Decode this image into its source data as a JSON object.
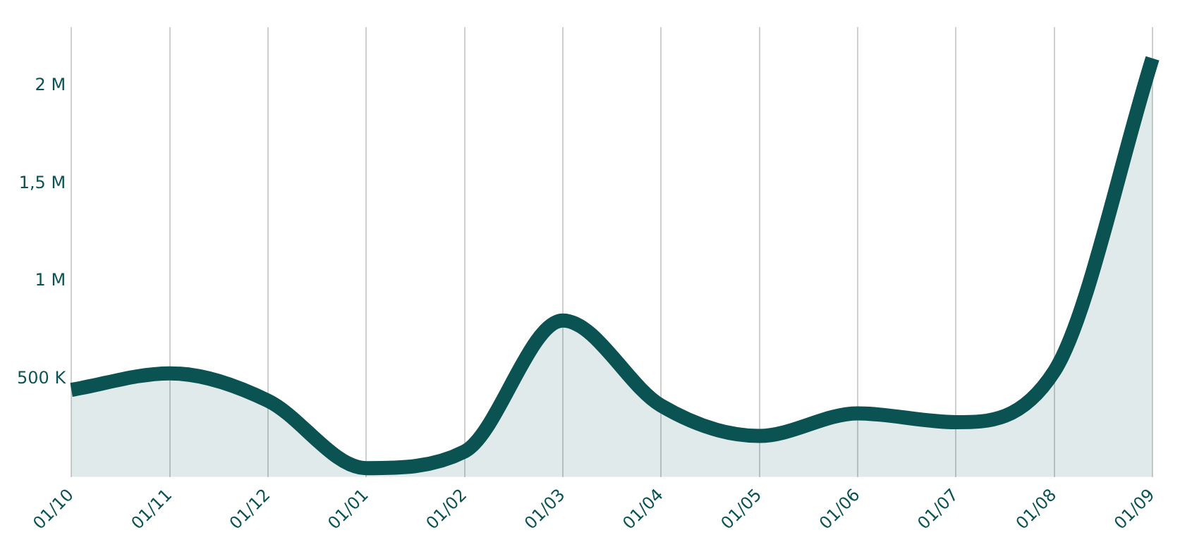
{
  "chart_data": {
    "type": "area",
    "categories": [
      "01/10",
      "01/11",
      "01/12",
      "01/01",
      "01/02",
      "01/03",
      "01/04",
      "01/05",
      "01/06",
      "01/07",
      "01/08",
      "01/09"
    ],
    "series": [
      {
        "color": "#0b5252",
        "values": [
          445000,
          530000,
          390000,
          45000,
          130000,
          800000,
          365000,
          210000,
          325000,
          280000,
          540000,
          2140000
        ]
      }
    ],
    "ylim": [
      0,
      2300000
    ],
    "yticks": [
      {
        "value": 500000,
        "label": "500 K"
      },
      {
        "value": 1000000,
        "label": "1 M"
      },
      {
        "value": 1500000,
        "label": "1,5 M"
      },
      {
        "value": 2000000,
        "label": "2 M"
      }
    ],
    "grid": "x",
    "legend": false,
    "marker": "none",
    "line_style": "solid"
  }
}
